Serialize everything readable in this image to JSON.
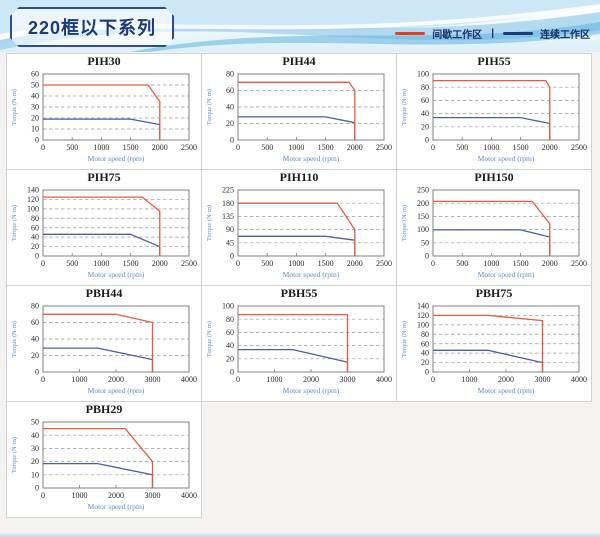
{
  "header": {
    "title": "220框以下系列",
    "legend": [
      {
        "label": "间歇工作区",
        "color": "#e0401f"
      },
      {
        "label": "连续工作区",
        "color": "#1f3a7a"
      }
    ],
    "legend_separator": "|"
  },
  "colors": {
    "intermittent_line": "#e75b3d",
    "continuous_line": "#4e5ea0",
    "grid_line": "#9b9b9b",
    "plot_border": "#808080",
    "tick_text": "#2b2b2b",
    "axis_label_text": "#5b8ecb",
    "cell_border": "#d2d2d0"
  },
  "chart_data": [
    {
      "title": "PIH30",
      "type": "line",
      "xlabel": "Motor speed (rpm)",
      "ylabel": "Torque (N·m)",
      "xlim": [
        0,
        2500
      ],
      "xstep": 500,
      "ylim": [
        0,
        60
      ],
      "ystep": 10,
      "grid": true,
      "series": [
        {
          "name": "间歇工作区",
          "key": "intermittent",
          "points": [
            [
              0,
              50
            ],
            [
              1800,
              50
            ],
            [
              2000,
              35
            ],
            [
              2000,
              0
            ]
          ]
        },
        {
          "name": "连续工作区",
          "key": "continuous",
          "points": [
            [
              0,
              19
            ],
            [
              1500,
              19
            ],
            [
              2000,
              14
            ],
            [
              2000,
              0
            ]
          ]
        }
      ]
    },
    {
      "title": "PIH44",
      "type": "line",
      "xlabel": "Motor speed (rpm)",
      "ylabel": "Torque (N·m)",
      "xlim": [
        0,
        2500
      ],
      "xstep": 500,
      "ylim": [
        0,
        80
      ],
      "ystep": 20,
      "grid": true,
      "series": [
        {
          "name": "间歇工作区",
          "key": "intermittent",
          "points": [
            [
              0,
              70
            ],
            [
              1900,
              70
            ],
            [
              2000,
              60
            ],
            [
              2000,
              0
            ]
          ]
        },
        {
          "name": "连续工作区",
          "key": "continuous",
          "points": [
            [
              0,
              28
            ],
            [
              1500,
              28
            ],
            [
              2000,
              21
            ],
            [
              2000,
              0
            ]
          ]
        }
      ]
    },
    {
      "title": "PIH55",
      "type": "line",
      "xlabel": "Motor speed (rpm)",
      "ylabel": "Torque (N·m)",
      "xlim": [
        0,
        2500
      ],
      "xstep": 500,
      "ylim": [
        0,
        100
      ],
      "ystep": 20,
      "grid": true,
      "series": [
        {
          "name": "间歇工作区",
          "key": "intermittent",
          "points": [
            [
              0,
              90
            ],
            [
              1930,
              90
            ],
            [
              2000,
              80
            ],
            [
              2000,
              0
            ]
          ]
        },
        {
          "name": "连续工作区",
          "key": "continuous",
          "points": [
            [
              0,
              34
            ],
            [
              1500,
              34
            ],
            [
              2000,
              25
            ],
            [
              2000,
              0
            ]
          ]
        }
      ]
    },
    {
      "title": "PIH75",
      "type": "line",
      "xlabel": "Motor speed (rpm)",
      "ylabel": "Torque (N·m)",
      "xlim": [
        0,
        2500
      ],
      "xstep": 500,
      "ylim": [
        0,
        140
      ],
      "ystep": 20,
      "grid": true,
      "series": [
        {
          "name": "间歇工作区",
          "key": "intermittent",
          "points": [
            [
              0,
              125
            ],
            [
              1700,
              125
            ],
            [
              2000,
              95
            ],
            [
              2000,
              0
            ]
          ]
        },
        {
          "name": "连续工作区",
          "key": "continuous",
          "points": [
            [
              0,
              46
            ],
            [
              1500,
              46
            ],
            [
              2000,
              20
            ],
            [
              2000,
              0
            ]
          ]
        }
      ]
    },
    {
      "title": "PIH110",
      "type": "line",
      "xlabel": "Motor speed (rpm)",
      "ylabel": "Torque (N·m)",
      "xlim": [
        0,
        2500
      ],
      "xstep": 500,
      "ylim": [
        0,
        225
      ],
      "ystep": 45,
      "grid": true,
      "series": [
        {
          "name": "间歇工作区",
          "key": "intermittent",
          "points": [
            [
              0,
              180
            ],
            [
              1700,
              180
            ],
            [
              2000,
              90
            ],
            [
              2000,
              0
            ]
          ]
        },
        {
          "name": "连续工作区",
          "key": "continuous",
          "points": [
            [
              0,
              67
            ],
            [
              1500,
              67
            ],
            [
              2000,
              54
            ],
            [
              2000,
              0
            ]
          ]
        }
      ]
    },
    {
      "title": "PIH150",
      "type": "line",
      "xlabel": "Motor speed (rpm)",
      "ylabel": "Torque (N·m)",
      "xlim": [
        0,
        2500
      ],
      "xstep": 500,
      "ylim": [
        0,
        250
      ],
      "ystep": 50,
      "grid": true,
      "series": [
        {
          "name": "间歇工作区",
          "key": "intermittent",
          "points": [
            [
              0,
              207
            ],
            [
              1700,
              207
            ],
            [
              2000,
              122
            ],
            [
              2000,
              0
            ]
          ]
        },
        {
          "name": "连续工作区",
          "key": "continuous",
          "points": [
            [
              0,
              99
            ],
            [
              1500,
              99
            ],
            [
              2000,
              72
            ],
            [
              2000,
              0
            ]
          ]
        }
      ]
    },
    {
      "title": "PBH44",
      "type": "line",
      "xlabel": "Motor speed (rpm)",
      "ylabel": "Torque (N·m)",
      "xlim": [
        0,
        4000
      ],
      "xstep": 1000,
      "ylim": [
        0,
        80
      ],
      "ystep": 20,
      "grid": true,
      "series": [
        {
          "name": "间歇工作区",
          "key": "intermittent",
          "points": [
            [
              0,
              70
            ],
            [
              2000,
              70
            ],
            [
              3000,
              60
            ],
            [
              3000,
              0
            ]
          ]
        },
        {
          "name": "连续工作区",
          "key": "continuous",
          "points": [
            [
              0,
              29
            ],
            [
              1500,
              29
            ],
            [
              3000,
              15
            ],
            [
              3000,
              0
            ]
          ]
        }
      ]
    },
    {
      "title": "PBH55",
      "type": "line",
      "xlabel": "Motor speed (rpm)",
      "ylabel": "Torque (N·m)",
      "xlim": [
        0,
        4000
      ],
      "xstep": 1000,
      "ylim": [
        0,
        100
      ],
      "ystep": 20,
      "grid": true,
      "series": [
        {
          "name": "间歇工作区",
          "key": "intermittent",
          "points": [
            [
              0,
              87
            ],
            [
              3000,
              87
            ],
            [
              3000,
              0
            ]
          ]
        },
        {
          "name": "连续工作区",
          "key": "continuous",
          "points": [
            [
              0,
              34
            ],
            [
              1500,
              34
            ],
            [
              3000,
              15
            ],
            [
              3000,
              0
            ]
          ]
        }
      ]
    },
    {
      "title": "PBH75",
      "type": "line",
      "xlabel": "Motor speed (rpm)",
      "ylabel": "Torque (N·m)",
      "xlim": [
        0,
        4000
      ],
      "xstep": 1000,
      "ylim": [
        0,
        140
      ],
      "ystep": 20,
      "grid": true,
      "series": [
        {
          "name": "间歇工作区",
          "key": "intermittent",
          "points": [
            [
              0,
              120
            ],
            [
              1500,
              120
            ],
            [
              3000,
              109
            ],
            [
              3000,
              0
            ]
          ]
        },
        {
          "name": "连续工作区",
          "key": "continuous",
          "points": [
            [
              0,
              46
            ],
            [
              1500,
              46
            ],
            [
              3000,
              20
            ],
            [
              3000,
              0
            ]
          ]
        }
      ]
    },
    {
      "title": "PBH29",
      "type": "line",
      "xlabel": "Motor speed (rpm)",
      "ylabel": "Torque (N·m)",
      "xlim": [
        0,
        4000
      ],
      "xstep": 1000,
      "ylim": [
        0,
        50
      ],
      "ystep": 10,
      "grid": true,
      "series": [
        {
          "name": "间歇工作区",
          "key": "intermittent",
          "points": [
            [
              0,
              45
            ],
            [
              2250,
              45
            ],
            [
              3000,
              20
            ],
            [
              3000,
              0
            ]
          ]
        },
        {
          "name": "连续工作区",
          "key": "continuous",
          "points": [
            [
              0,
              18.5
            ],
            [
              1500,
              18.5
            ],
            [
              3000,
              10
            ],
            [
              3000,
              0
            ]
          ]
        }
      ]
    }
  ]
}
